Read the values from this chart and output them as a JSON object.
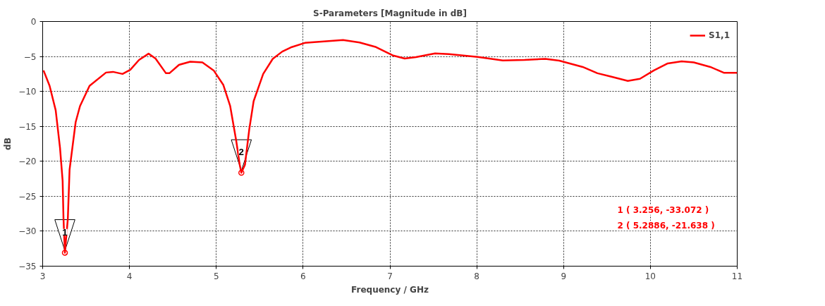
{
  "chart_data": {
    "type": "line",
    "title": "S-Parameters [Magnitude in dB]",
    "xlabel": "Frequency / GHz",
    "ylabel": "dB",
    "xlim": [
      3,
      11
    ],
    "xticks": [
      3,
      4,
      5,
      6,
      7,
      8,
      9,
      10,
      11
    ],
    "ylim": [
      -35,
      0
    ],
    "yticks": [
      -35,
      -30,
      -25,
      -20,
      -15,
      -10,
      -5,
      0
    ],
    "grid": true,
    "legend": "top right",
    "line_style": "solid",
    "series": [
      {
        "name": "S1,1",
        "color": "#ff0000",
        "x": [
          3.01,
          3.08,
          3.15,
          3.2,
          3.23,
          3.24,
          3.256,
          3.29,
          3.31,
          3.38,
          3.43,
          3.54,
          3.73,
          3.81,
          3.92,
          4.01,
          4.11,
          4.22,
          4.3,
          4.42,
          4.46,
          4.57,
          4.7,
          4.84,
          4.97,
          5.08,
          5.16,
          5.23,
          5.27,
          5.2886,
          5.33,
          5.38,
          5.43,
          5.54,
          5.65,
          5.76,
          5.87,
          6.02,
          6.46,
          6.65,
          6.84,
          7.03,
          7.17,
          7.3,
          7.52,
          7.68,
          8.01,
          8.3,
          8.55,
          8.79,
          8.95,
          9.22,
          9.39,
          9.55,
          9.74,
          9.88,
          10.04,
          10.2,
          10.36,
          10.5,
          10.69,
          10.85,
          11.0
        ],
        "values": [
          -7.0,
          -9.2,
          -12.7,
          -18.1,
          -22.8,
          -28.2,
          -33.072,
          -28.2,
          -21.2,
          -14.4,
          -12.1,
          -9.2,
          -7.3,
          -7.2,
          -7.5,
          -6.9,
          -5.5,
          -4.6,
          -5.3,
          -7.4,
          -7.4,
          -6.2,
          -5.75,
          -5.85,
          -7.0,
          -9.05,
          -12.1,
          -17.1,
          -20.5,
          -21.638,
          -20.5,
          -15.4,
          -11.4,
          -7.5,
          -5.35,
          -4.3,
          -3.65,
          -3.06,
          -2.65,
          -3.0,
          -3.66,
          -4.84,
          -5.3,
          -5.1,
          -4.57,
          -4.67,
          -5.07,
          -5.58,
          -5.5,
          -5.35,
          -5.6,
          -6.5,
          -7.4,
          -7.9,
          -8.5,
          -8.2,
          -7.0,
          -6.0,
          -5.7,
          -5.85,
          -6.5,
          -7.35,
          -7.35
        ]
      }
    ],
    "annotations": [
      {
        "text": "1",
        "x": 3.256,
        "y": -33.072
      },
      {
        "text": "2",
        "x": 5.2886,
        "y": -21.638
      },
      "1 ( 3.256, -33.072 )",
      "2 ( 5.2886, -21.638 )"
    ]
  }
}
